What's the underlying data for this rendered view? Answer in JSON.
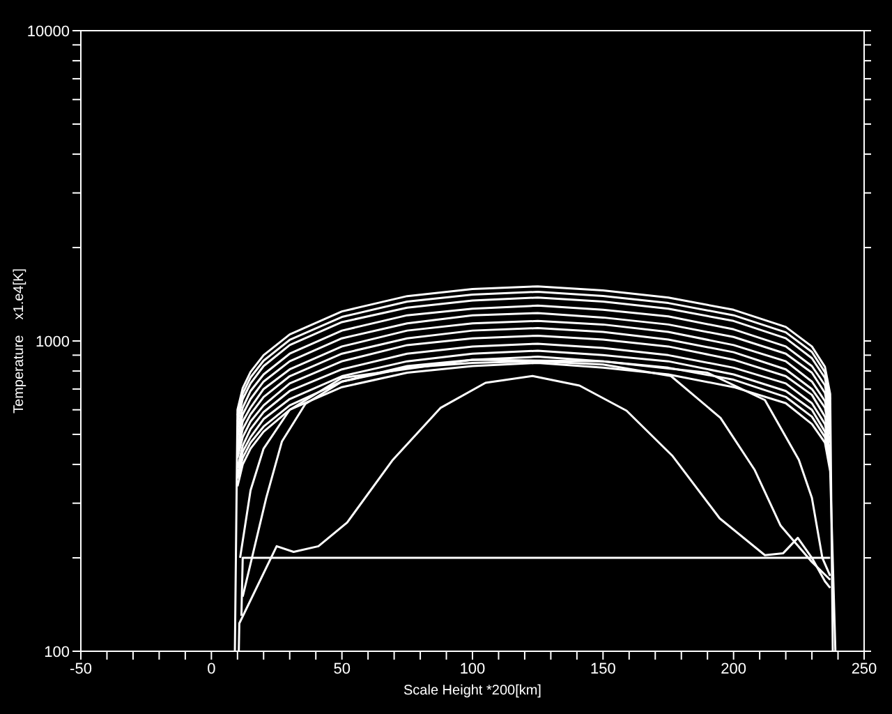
{
  "chart_data": {
    "type": "line",
    "log": true,
    "xlabel": "Scale Height *200[km]",
    "ylabel": "Temperature    x1.e4[K]",
    "xlim": [
      -50,
      250
    ],
    "xticks": [
      -50,
      {
        "value": -40,
        "label": null
      },
      {
        "value": -30,
        "label": null
      },
      {
        "value": -20,
        "label": null
      },
      {
        "value": -10,
        "label": null
      },
      0,
      {
        "value": 10,
        "label": null
      },
      {
        "value": 20,
        "label": null
      },
      {
        "value": 30,
        "label": null
      },
      {
        "value": 40,
        "label": null
      },
      50,
      {
        "value": 60,
        "label": null
      },
      {
        "value": 70,
        "label": null
      },
      {
        "value": 80,
        "label": null
      },
      {
        "value": 90,
        "label": null
      },
      100,
      {
        "value": 110,
        "label": null
      },
      {
        "value": 120,
        "label": null
      },
      {
        "value": 130,
        "label": null
      },
      {
        "value": 140,
        "label": null
      },
      150,
      {
        "value": 160,
        "label": null
      },
      {
        "value": 170,
        "label": null
      },
      {
        "value": 180,
        "label": null
      },
      {
        "value": 190,
        "label": null
      },
      200,
      {
        "value": 210,
        "label": null
      },
      {
        "value": 220,
        "label": null
      },
      {
        "value": 230,
        "label": null
      },
      {
        "value": 240,
        "label": null
      },
      250
    ],
    "ylim": [
      100,
      10000
    ],
    "yticks": [
      100,
      {
        "value": 200,
        "label": null
      },
      {
        "value": 300,
        "label": null
      },
      {
        "value": 400,
        "label": null
      },
      {
        "value": 500,
        "label": null
      },
      {
        "value": 600,
        "label": null
      },
      {
        "value": 700,
        "label": null
      },
      {
        "value": 800,
        "label": null
      },
      {
        "value": 900,
        "label": null
      },
      1000,
      {
        "value": 2000,
        "label": null
      },
      {
        "value": 3000,
        "label": null
      },
      {
        "value": 4000,
        "label": null
      },
      {
        "value": 5000,
        "label": null
      },
      {
        "value": 6000,
        "label": null
      },
      {
        "value": 7000,
        "label": null
      },
      {
        "value": 8000,
        "label": null
      },
      {
        "value": 9000,
        "label": null
      },
      10000
    ],
    "series": [
      {
        "color": "#ffffff",
        "x": [
          9,
          10,
          12,
          15,
          20,
          30,
          50,
          75,
          100,
          125,
          150,
          175,
          200,
          220,
          230,
          235,
          237,
          238
        ],
        "values": [
          100,
          600,
          705,
          795,
          900,
          1050,
          1245,
          1395,
          1470,
          1500,
          1455,
          1380,
          1260,
          1110,
          960,
          825,
          675,
          100
        ]
      },
      {
        "color": "#ffffff",
        "x": [
          10,
          12,
          15,
          20,
          30,
          50,
          75,
          100,
          125,
          150,
          175,
          200,
          220,
          230,
          235,
          237
        ],
        "values": [
          576,
          677,
          763,
          864,
          1008,
          1195,
          1339,
          1411,
          1440,
          1397,
          1325,
          1210,
          1066,
          922,
          792,
          648
        ]
      },
      {
        "color": "#ffffff",
        "x": [
          10,
          12,
          15,
          20,
          30,
          50,
          75,
          100,
          125,
          150,
          175,
          200,
          220,
          230,
          235,
          237
        ],
        "values": [
          550,
          650,
          730,
          830,
          970,
          1150,
          1280,
          1350,
          1380,
          1340,
          1270,
          1160,
          1020,
          880,
          760,
          620
        ]
      },
      {
        "color": "#ffffff",
        "x": [
          10,
          12,
          15,
          20,
          30,
          50,
          75,
          100,
          125,
          150,
          175,
          200,
          220,
          230,
          235,
          237
        ],
        "values": [
          520,
          610,
          690,
          780,
          910,
          1080,
          1210,
          1270,
          1300,
          1260,
          1200,
          1090,
          960,
          830,
          720,
          590
        ]
      },
      {
        "color": "#ffffff",
        "x": [
          10,
          12,
          15,
          20,
          30,
          50,
          75,
          100,
          125,
          150,
          175,
          200,
          220,
          230,
          235,
          237
        ],
        "values": [
          490,
          580,
          650,
          740,
          860,
          1020,
          1140,
          1210,
          1230,
          1190,
          1130,
          1030,
          910,
          790,
          680,
          550
        ]
      },
      {
        "color": "#ffffff",
        "x": [
          10,
          12,
          15,
          20,
          30,
          50,
          75,
          100,
          125,
          150,
          175,
          200,
          220,
          230,
          235,
          237
        ],
        "values": [
          460,
          550,
          610,
          700,
          810,
          960,
          1080,
          1140,
          1160,
          1130,
          1070,
          970,
          860,
          740,
          640,
          520
        ]
      },
      {
        "color": "#ffffff",
        "x": [
          10,
          12,
          15,
          20,
          30,
          50,
          75,
          100,
          125,
          150,
          175,
          200,
          220,
          230,
          235,
          237
        ],
        "values": [
          440,
          520,
          580,
          660,
          770,
          910,
          1020,
          1080,
          1100,
          1070,
          1010,
          920,
          810,
          700,
          610,
          500
        ]
      },
      {
        "color": "#ffffff",
        "x": [
          10,
          12,
          15,
          20,
          30,
          50,
          75,
          100,
          125,
          150,
          175,
          200,
          220,
          230,
          235,
          237
        ],
        "values": [
          420,
          490,
          550,
          620,
          730,
          860,
          970,
          1020,
          1040,
          1010,
          960,
          870,
          770,
          670,
          570,
          470
        ]
      },
      {
        "color": "#ffffff",
        "x": [
          10,
          12,
          15,
          20,
          30,
          50,
          75,
          100,
          125,
          150,
          175,
          200,
          220,
          230,
          235,
          237
        ],
        "values": [
          390,
          460,
          520,
          590,
          690,
          810,
          910,
          960,
          980,
          950,
          900,
          820,
          730,
          630,
          540,
          440
        ]
      },
      {
        "color": "#ffffff",
        "x": [
          10,
          12,
          15,
          20,
          30,
          50,
          75,
          100,
          125,
          150,
          175,
          200,
          220,
          230,
          235,
          237
        ],
        "values": [
          370,
          440,
          490,
          560,
          650,
          770,
          860,
          910,
          930,
          900,
          860,
          780,
          690,
          600,
          510,
          420
        ]
      },
      {
        "color": "#ffffff",
        "x": [
          10,
          12,
          15,
          20,
          30,
          50,
          75,
          100,
          125,
          150,
          175,
          200,
          220,
          230,
          235,
          237
        ],
        "values": [
          360,
          420,
          470,
          530,
          620,
          740,
          830,
          870,
          890,
          860,
          820,
          750,
          660,
          570,
          490,
          400
        ]
      },
      {
        "color": "#ffffff",
        "x": [
          10,
          12,
          15,
          20,
          30,
          50,
          75,
          100,
          125,
          150,
          175,
          200,
          220,
          230,
          235,
          237,
          239
        ],
        "values": [
          340,
          400,
          450,
          510,
          600,
          710,
          790,
          830,
          850,
          820,
          780,
          710,
          630,
          540,
          470,
          380,
          100
        ]
      },
      {
        "color": "#ffffff",
        "x": [
          12,
          21,
          27,
          36,
          50,
          75,
          100,
          125,
          150,
          176,
          195,
          208,
          218,
          230,
          237
        ],
        "values": [
          150,
          312,
          474,
          627,
          740,
          820,
          850,
          860,
          840,
          771,
          565,
          385,
          254,
          194,
          170
        ]
      },
      {
        "color": "#ffffff",
        "x": [
          11,
          15,
          20,
          30,
          50,
          100,
          150,
          190,
          212,
          225,
          230,
          234,
          237
        ],
        "values": [
          200,
          330,
          450,
          600,
          760,
          870,
          860,
          790,
          645,
          414,
          312,
          200,
          175
        ]
      },
      {
        "color": "#ffffff",
        "x": [
          10.5,
          10.7,
          25,
          31.5,
          41,
          52,
          69.5,
          87.7,
          105,
          123,
          141,
          159,
          176.5,
          194.7,
          212,
          219,
          224.6,
          230,
          235,
          237
        ],
        "values": [
          100,
          123,
          218,
          209,
          218,
          260,
          414,
          608,
          733,
          771,
          718,
          596,
          427,
          268,
          204,
          207,
          232,
          200,
          168,
          160
        ]
      },
      {
        "color": "#ffffff",
        "x": [
          11.5,
          12,
          237
        ],
        "values": [
          130,
          200,
          200
        ]
      }
    ]
  }
}
